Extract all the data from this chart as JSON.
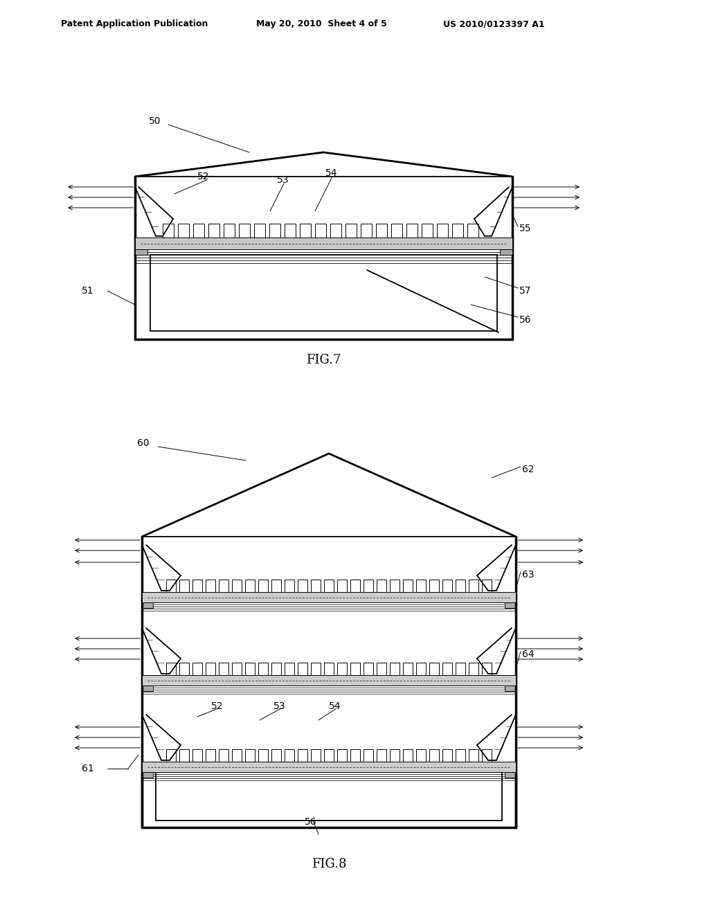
{
  "bg_color": "#ffffff",
  "line_color": "#000000",
  "header_left": "Patent Application Publication",
  "header_mid": "May 20, 2010  Sheet 4 of 5",
  "header_right": "US 2010/0123397 A1",
  "fig7_label": "FIG.7",
  "fig8_label": "FIG.8"
}
